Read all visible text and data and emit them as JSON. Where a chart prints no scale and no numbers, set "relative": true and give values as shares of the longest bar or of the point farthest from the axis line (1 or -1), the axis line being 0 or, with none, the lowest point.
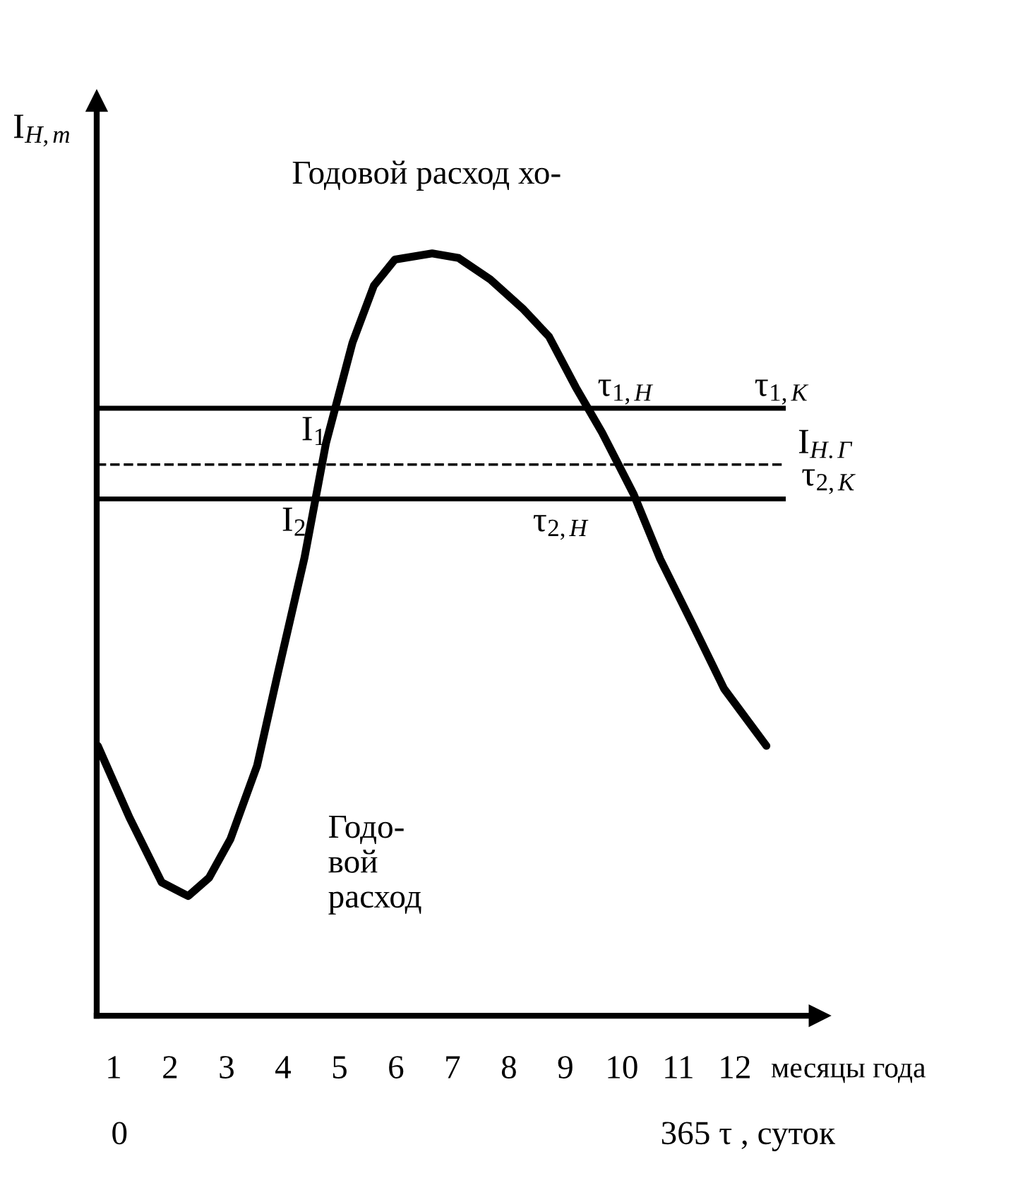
{
  "chart_data": {
    "type": "line",
    "relative": true,
    "ylabel": "I$_{Н,т}$",
    "xlabel": "месяцы года",
    "xlim": [
      0.7,
      13.5
    ],
    "xticks": [
      1,
      2,
      3,
      4,
      5,
      6,
      7,
      8,
      9,
      10,
      11,
      12
    ],
    "series": [
      {
        "color": "#000000",
        "x": [
          0.72,
          1.28,
          1.85,
          2.32,
          2.69,
          3.07,
          3.54,
          3.91,
          4.38,
          4.76,
          5.23,
          5.61,
          5.98,
          6.64,
          7.11,
          7.67,
          8.24,
          8.71,
          9.18,
          9.65,
          10.21,
          10.68,
          11.25,
          11.81,
          12.56
        ],
        "values": [
          0.354,
          0.26,
          0.175,
          0.157,
          0.181,
          0.232,
          0.328,
          0.45,
          0.601,
          0.751,
          0.883,
          0.958,
          0.992,
          1.0,
          0.994,
          0.966,
          0.928,
          0.891,
          0.825,
          0.765,
          0.684,
          0.599,
          0.514,
          0.429,
          0.354
        ]
      }
    ],
    "ref_lines": [
      {
        "axis": "y",
        "value": 0.797,
        "label": "I$_{1}$",
        "line_style": "solid"
      },
      {
        "axis": "y",
        "value": 0.723,
        "label": "I$_{Н.Г}$",
        "line_style": "dashed"
      },
      {
        "axis": "y",
        "value": 0.678,
        "label": "I$_{2}$",
        "line_style": "solid"
      }
    ],
    "annotations": [
      "Годовой расход хо-",
      "Годо-\nвой\nрасход",
      "0",
      "365 τ , суток",
      "τ$_{2,К}$",
      "τ$_{1,Н}$",
      "τ$_{1,К}$",
      "τ$_{2,Н}$"
    ],
    "grid": false,
    "marker": "none",
    "line_style": "solid"
  }
}
